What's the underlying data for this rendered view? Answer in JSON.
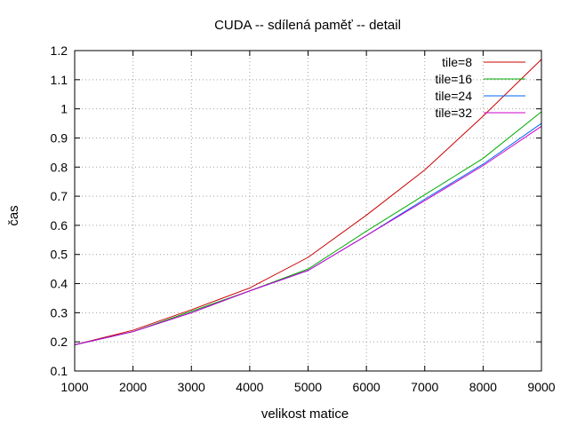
{
  "chart_data": {
    "type": "line",
    "title": "CUDA -- sdílená paměť -- detail",
    "xlabel": "velikost matice",
    "ylabel": "čas",
    "xlim": [
      1000,
      9000
    ],
    "ylim": [
      0.1,
      1.2
    ],
    "x_ticks": [
      "1000",
      "2000",
      "3000",
      "4000",
      "5000",
      "6000",
      "7000",
      "8000",
      "9000"
    ],
    "y_ticks": [
      "0.1",
      "0.2",
      "0.3",
      "0.4",
      "0.5",
      "0.6",
      "0.7",
      "0.8",
      "0.9",
      "1",
      "1.1",
      "1.2"
    ],
    "grid": true,
    "legend_position": "top-right",
    "x": [
      1000,
      2000,
      3000,
      4000,
      5000,
      6000,
      7000,
      8000,
      9000
    ],
    "series": [
      {
        "name": "tile=8",
        "color": "#cc0000",
        "values": [
          0.19,
          0.24,
          0.31,
          0.385,
          0.49,
          0.635,
          0.79,
          0.975,
          1.17
        ]
      },
      {
        "name": "tile=16",
        "color": "#00aa00",
        "values": [
          0.19,
          0.235,
          0.305,
          0.375,
          0.45,
          0.58,
          0.705,
          0.83,
          0.99
        ]
      },
      {
        "name": "tile=24",
        "color": "#0066ee",
        "values": [
          0.19,
          0.235,
          0.3,
          0.375,
          0.445,
          0.565,
          0.69,
          0.81,
          0.95
        ]
      },
      {
        "name": "tile=32",
        "color": "#cc00cc",
        "values": [
          0.19,
          0.235,
          0.3,
          0.375,
          0.445,
          0.565,
          0.685,
          0.805,
          0.94
        ]
      }
    ]
  }
}
